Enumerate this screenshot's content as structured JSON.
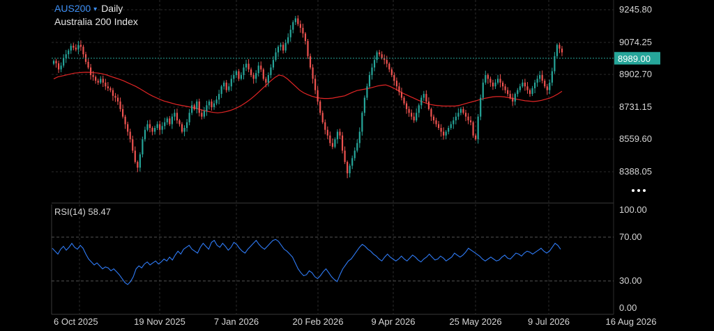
{
  "header": {
    "symbol": "AUS200",
    "caret": "▾",
    "timeframe": "Daily",
    "instrument_name": "Australia 200 Index"
  },
  "menu_icon": "more-dots-icon",
  "colors": {
    "background": "#000000",
    "up": "#26a69a",
    "down": "#ef5350",
    "ma": "#e32525",
    "rsi": "#2f7bf6",
    "grid": "#2b2b2b",
    "price_tag_bg": "#26a69a"
  },
  "chart_data": [
    {
      "type": "candlestick",
      "title": "AUS200 Daily",
      "subtitle": "Australia 200 Index",
      "y_ticks": [
        "9245.80",
        "9074.25",
        "8902.70",
        "8731.15",
        "8559.60",
        "8388.05"
      ],
      "ylim": [
        8302.3,
        9331.6
      ],
      "x_ticks": [
        "6 Oct 2025",
        "19 Nov 2025",
        "7 Jan 2026",
        "20 Feb 2026",
        "9 Apr 2026",
        "25 May 2026",
        "9 Jul 2026",
        "16 Aug 2026"
      ],
      "last_price": "8989.00",
      "last_price_value": 8989.0,
      "grid": true,
      "series": [
        {
          "kind": "ohlc",
          "note": "approximate daily candles read off the chart",
          "closes": [
            8975,
            8962,
            8930,
            8950,
            8990,
            9010,
            9030,
            9055,
            9045,
            9035,
            9060,
            9050,
            9010,
            8970,
            8940,
            8900,
            8890,
            8870,
            8860,
            8880,
            8860,
            8840,
            8830,
            8820,
            8790,
            8780,
            8760,
            8720,
            8680,
            8640,
            8600,
            8560,
            8500,
            8440,
            8410,
            8480,
            8560,
            8610,
            8640,
            8620,
            8600,
            8620,
            8640,
            8610,
            8630,
            8650,
            8670,
            8640,
            8680,
            8700,
            8660,
            8640,
            8600,
            8620,
            8650,
            8700,
            8740,
            8720,
            8760,
            8700,
            8680,
            8710,
            8740,
            8760,
            8730,
            8750,
            8770,
            8800,
            8840,
            8860,
            8820,
            8840,
            8880,
            8900,
            8920,
            8880,
            8900,
            8940,
            8960,
            8930,
            8900,
            8880,
            8910,
            8950,
            8930,
            8880,
            8860,
            8900,
            8940,
            8980,
            9020,
            9050,
            9060,
            9030,
            9070,
            9100,
            9140,
            9180,
            9200,
            9170,
            9150,
            9120,
            9080,
            9000,
            8940,
            8880,
            8820,
            8760,
            8700,
            8650,
            8610,
            8580,
            8540,
            8520,
            8560,
            8600,
            8580,
            8500,
            8440,
            8380,
            8420,
            8460,
            8500,
            8540,
            8600,
            8700,
            8780,
            8840,
            8900,
            8940,
            8980,
            9020,
            9010,
            8990,
            8980,
            8960,
            8930,
            8900,
            8870,
            8840,
            8810,
            8780,
            8750,
            8720,
            8700,
            8680,
            8660,
            8700,
            8740,
            8780,
            8800,
            8760,
            8720,
            8680,
            8660,
            8640,
            8620,
            8600,
            8580,
            8600,
            8620,
            8640,
            8660,
            8680,
            8700,
            8720,
            8700,
            8680,
            8660,
            8650,
            8580,
            8560,
            8680,
            8780,
            8860,
            8900,
            8880,
            8860,
            8840,
            8860,
            8880,
            8860,
            8840,
            8820,
            8800,
            8780,
            8760,
            8800,
            8820,
            8840,
            8860,
            8840,
            8820,
            8800,
            8830,
            8860,
            8880,
            8900,
            8870,
            8840,
            8820,
            8860,
            8920,
            9000,
            9060,
            9040,
            9020
          ]
        },
        {
          "kind": "line",
          "note": "moving average overlay",
          "values": [
            8880,
            8890,
            8895,
            8900,
            8905,
            8910,
            8912,
            8914,
            8915,
            8914,
            8912,
            8910,
            8906,
            8900,
            8892,
            8885,
            8878,
            8870,
            8860,
            8850,
            8840,
            8828,
            8815,
            8802,
            8790,
            8780,
            8770,
            8762,
            8756,
            8750,
            8744,
            8740,
            8736,
            8732,
            8728,
            8722,
            8716,
            8710,
            8706,
            8702,
            8700,
            8702,
            8706,
            8712,
            8720,
            8730,
            8742,
            8756,
            8772,
            8790,
            8810,
            8830,
            8850,
            8870,
            8888,
            8900,
            8895,
            8880,
            8860,
            8840,
            8820,
            8806,
            8796,
            8788,
            8782,
            8778,
            8776,
            8776,
            8778,
            8782,
            8786,
            8790,
            8800,
            8810,
            8818,
            8822,
            8826,
            8830,
            8836,
            8842,
            8846,
            8848,
            8840,
            8830,
            8818,
            8806,
            8796,
            8786,
            8776,
            8766,
            8758,
            8750,
            8744,
            8740,
            8738,
            8736,
            8736,
            8736,
            8736,
            8740,
            8746,
            8752,
            8758,
            8764,
            8770,
            8776,
            8780,
            8784,
            8786,
            8786,
            8784,
            8780,
            8776,
            8772,
            8768,
            8764,
            8762,
            8760,
            8762,
            8766,
            8772,
            8778,
            8788,
            8800,
            8814
          ]
        }
      ]
    },
    {
      "type": "line",
      "title": "RSI(14) 58.47",
      "y_ticks": [
        "100.00",
        "70.00",
        "30.00",
        "0.00"
      ],
      "ylim": [
        0,
        100
      ],
      "reference_lines": [
        70,
        30
      ],
      "x_ticks": [
        "6 Oct 2025",
        "19 Nov 2025",
        "7 Jan 2026",
        "20 Feb 2026",
        "9 Apr 2026",
        "25 May 2026",
        "9 Jul 2026",
        "16 Aug 2026"
      ],
      "series": [
        {
          "values": [
            61,
            58,
            55,
            60,
            63,
            59,
            62,
            66,
            62,
            60,
            64,
            61,
            55,
            50,
            47,
            44,
            46,
            43,
            40,
            42,
            41,
            38,
            40,
            37,
            34,
            30,
            26,
            24,
            27,
            32,
            40,
            43,
            41,
            45,
            47,
            44,
            46,
            48,
            45,
            47,
            50,
            48,
            52,
            49,
            54,
            58,
            55,
            60,
            62,
            64,
            60,
            58,
            56,
            62,
            66,
            63,
            60,
            67,
            69,
            64,
            62,
            66,
            63,
            59,
            62,
            67,
            65,
            61,
            58,
            56,
            60,
            63,
            66,
            69,
            65,
            62,
            60,
            63,
            66,
            69,
            70,
            68,
            64,
            60,
            58,
            55,
            52,
            46,
            40,
            36,
            33,
            34,
            38,
            36,
            32,
            30,
            33,
            37,
            40,
            36,
            32,
            29,
            27,
            34,
            40,
            44,
            48,
            50,
            54,
            58,
            62,
            65,
            63,
            60,
            58,
            55,
            53,
            50,
            48,
            52,
            55,
            52,
            50,
            48,
            50,
            53,
            50,
            48,
            51,
            54,
            52,
            49,
            47,
            50,
            52,
            55,
            52,
            49,
            50,
            53,
            51,
            48,
            50,
            52,
            56,
            54,
            52,
            54,
            57,
            61,
            59,
            57,
            55,
            53,
            50,
            48,
            50,
            52,
            50,
            48,
            49,
            52,
            54,
            51,
            50,
            53,
            56,
            55,
            53,
            56,
            58,
            57,
            55,
            57,
            59,
            61,
            58,
            56,
            58,
            62,
            66,
            64,
            60
          ]
        }
      ]
    }
  ]
}
